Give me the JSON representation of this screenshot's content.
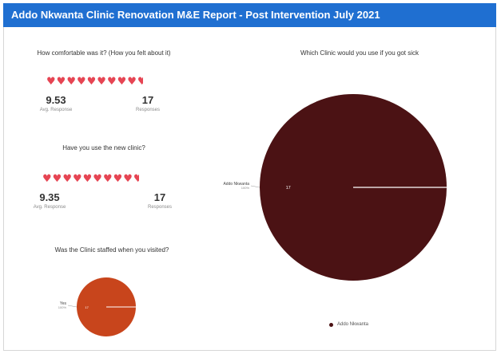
{
  "header": {
    "title": "Addo Nkwanta Clinic Renovation M&E Report - Post Intervention July 2021"
  },
  "comfort": {
    "question": "How comfortable was it? (How you felt about it)",
    "avg_value": "9.53",
    "avg_label": "Avg. Response",
    "responses_value": "17",
    "responses_label": "Responses",
    "rating": 9.53,
    "max": 10
  },
  "new_clinic": {
    "question": "Have you use the new clinic?",
    "avg_value": "9.35",
    "avg_label": "Avg. Response",
    "responses_value": "17",
    "responses_label": "Responses",
    "rating": 9.35,
    "max": 10
  },
  "chart_data": [
    {
      "type": "pie",
      "title": "Was the Clinic staffed when you visited?",
      "slices": [
        {
          "label": "Yes",
          "value": 17,
          "percent_label": "100%",
          "color": "#c8451c"
        }
      ]
    },
    {
      "type": "pie",
      "title": "Which Clinic would you use if you got sick",
      "slices": [
        {
          "label": "Addo Nkwanta",
          "value": 17,
          "percent_label": "100%",
          "color": "#4b1214"
        }
      ],
      "legend": {
        "placement": "bottom",
        "entries": [
          "Addo Nkwanta"
        ]
      }
    }
  ]
}
